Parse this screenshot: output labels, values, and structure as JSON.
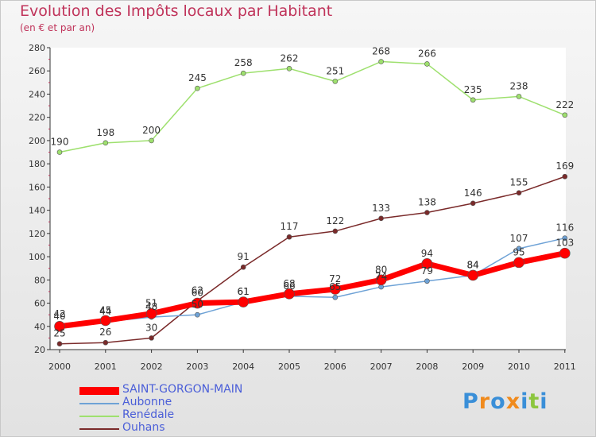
{
  "header": {
    "title": "Evolution des Impôts locaux par Habitant",
    "subtitle": "(en € et par an)"
  },
  "chart_data": {
    "type": "line",
    "title": "Evolution des Impôts locaux par Habitant",
    "subtitle": "(en € et par an)",
    "xlabel": "",
    "ylabel": "",
    "x": [
      "2000",
      "2001",
      "2002",
      "2003",
      "2004",
      "2005",
      "2006",
      "2007",
      "2008",
      "2009",
      "2010",
      "2011"
    ],
    "ylim": [
      20,
      280
    ],
    "yticks": [
      "20",
      "40",
      "60",
      "80",
      "100",
      "120",
      "140",
      "160",
      "180",
      "200",
      "220",
      "240",
      "260",
      "280"
    ],
    "grid": false,
    "legend_position": "bottom-left",
    "series": [
      {
        "name": "SAINT-GORGON-MAIN",
        "color": "#ff0000",
        "values": [
          40,
          45,
          51,
          60,
          61,
          68,
          72,
          80,
          94,
          84,
          95,
          103
        ]
      },
      {
        "name": "Aubonne",
        "color": "#6ea2d6",
        "values": [
          42,
          44,
          48,
          50,
          61,
          66,
          65,
          74,
          79,
          84,
          107,
          116
        ]
      },
      {
        "name": "Renédale",
        "color": "#9ee06e",
        "values": [
          190,
          198,
          200,
          245,
          258,
          262,
          251,
          268,
          266,
          235,
          238,
          222
        ]
      },
      {
        "name": "Ouhans",
        "color": "#7a2a2a",
        "values": [
          25,
          26,
          30,
          62,
          91,
          117,
          122,
          133,
          138,
          146,
          155,
          169
        ]
      }
    ]
  },
  "legend": {
    "items": [
      {
        "label": "SAINT-GORGON-MAIN",
        "color": "#ff0000"
      },
      {
        "label": "Aubonne",
        "color": "#6ea2d6"
      },
      {
        "label": "Renédale",
        "color": "#9ee06e"
      },
      {
        "label": "Ouhans",
        "color": "#7a2a2a"
      }
    ]
  },
  "branding": {
    "logo_letters": [
      "P",
      "r",
      "o",
      "x",
      "i",
      "t",
      "i"
    ],
    "logo_colors": [
      "#3a8fd8",
      "#f08a1c",
      "#3a8fd8",
      "#f08a1c",
      "#3a8fd8",
      "#8cc63f",
      "#3a8fd8"
    ]
  }
}
